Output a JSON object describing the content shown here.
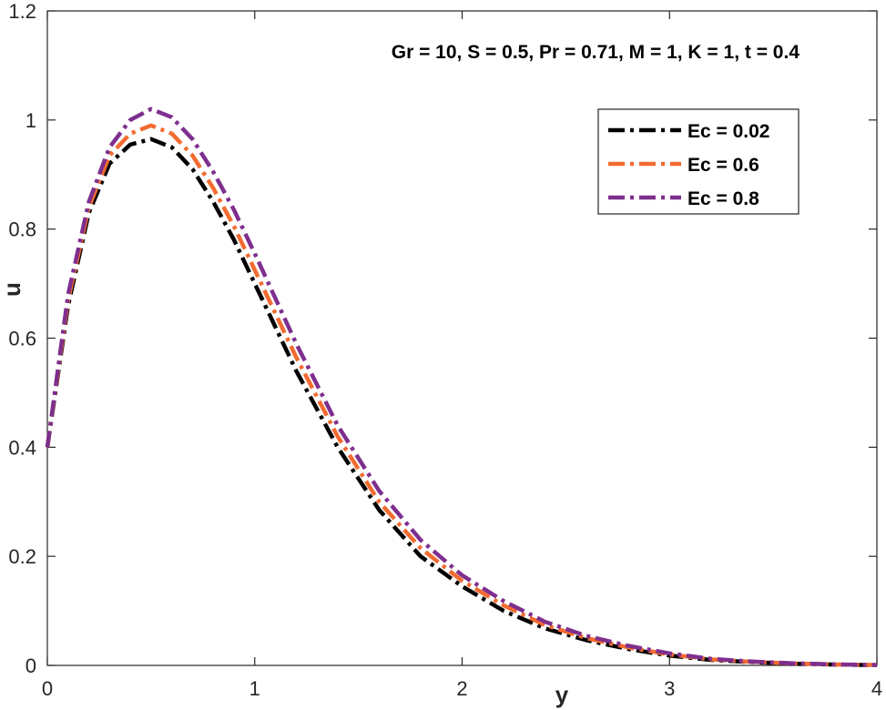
{
  "chart_data": {
    "type": "line",
    "title": "",
    "xlabel": "y",
    "ylabel": "u",
    "xlim": [
      0,
      4
    ],
    "ylim": [
      0,
      1.2
    ],
    "xticks": [
      0,
      1,
      2,
      3,
      4
    ],
    "xtick_labels": [
      "0",
      "1",
      "2",
      "3",
      "4"
    ],
    "yticks": [
      0,
      0.2,
      0.4,
      0.6,
      0.8,
      1,
      1.2
    ],
    "ytick_labels": [
      "0",
      "0.2",
      "0.4",
      "0.6",
      "0.8",
      "1",
      "1.2"
    ],
    "grid": false,
    "legend_position": "top-right",
    "annotation": "Gr = 10, S = 0.5, Pr = 0.71, M = 1, K = 1, t = 0.4",
    "line_style": "dash-dot",
    "x": [
      0,
      0.1,
      0.2,
      0.3,
      0.4,
      0.5,
      0.6,
      0.7,
      0.8,
      0.9,
      1.0,
      1.2,
      1.4,
      1.6,
      1.8,
      2.0,
      2.2,
      2.4,
      2.6,
      2.8,
      3.0,
      3.2,
      3.4,
      3.6,
      3.8,
      4.0
    ],
    "series": [
      {
        "name": "Ec = 0.02",
        "color": "#000000",
        "values": [
          0.4,
          0.66,
          0.83,
          0.92,
          0.955,
          0.965,
          0.95,
          0.91,
          0.85,
          0.78,
          0.7,
          0.54,
          0.4,
          0.285,
          0.2,
          0.145,
          0.1,
          0.068,
          0.046,
          0.03,
          0.018,
          0.01,
          0.006,
          0.003,
          0.0015,
          0.0005
        ]
      },
      {
        "name": "Ec = 0.6",
        "color": "#F26B30",
        "values": [
          0.4,
          0.67,
          0.84,
          0.935,
          0.975,
          0.99,
          0.975,
          0.935,
          0.875,
          0.805,
          0.725,
          0.565,
          0.42,
          0.3,
          0.215,
          0.155,
          0.11,
          0.074,
          0.05,
          0.033,
          0.02,
          0.011,
          0.0065,
          0.0035,
          0.0017,
          0.0006
        ]
      },
      {
        "name": "Ec = 0.8",
        "color": "#7E2F8E",
        "values": [
          0.4,
          0.68,
          0.85,
          0.95,
          1.0,
          1.02,
          1.005,
          0.965,
          0.905,
          0.835,
          0.755,
          0.59,
          0.44,
          0.32,
          0.23,
          0.165,
          0.118,
          0.08,
          0.054,
          0.036,
          0.022,
          0.012,
          0.007,
          0.0038,
          0.0019,
          0.0007
        ]
      }
    ]
  }
}
